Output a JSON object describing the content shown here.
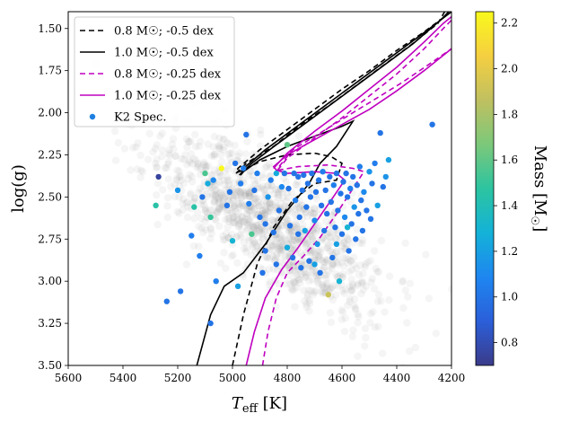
{
  "chart_data": {
    "type": "scatter",
    "xlabel_main": "T",
    "xlabel_sub": "eff",
    "xlabel_unit": " [K]",
    "ylabel": "log(g)",
    "xlim": [
      5600,
      4200
    ],
    "ylim": [
      3.5,
      1.4
    ],
    "xticks": [
      5600,
      5400,
      5200,
      5000,
      4800,
      4600,
      4400,
      4200
    ],
    "yticks": [
      1.5,
      1.75,
      2.0,
      2.25,
      2.5,
      2.75,
      3.0,
      3.25,
      3.5
    ],
    "ytick_labels": [
      "1.50",
      "1.75",
      "2.00",
      "2.25",
      "2.50",
      "2.75",
      "3.00",
      "3.25",
      "3.50"
    ],
    "colorbar": {
      "label": "Mass [M",
      "label_sun": "☉",
      "label_end": "]",
      "range": [
        0.7,
        2.25
      ],
      "ticks": [
        0.8,
        1.0,
        1.2,
        1.4,
        1.6,
        1.8,
        2.0,
        2.2
      ],
      "tick_labels": [
        "0.8",
        "1.0",
        "1.2",
        "1.4",
        "1.6",
        "1.8",
        "2.0",
        "2.2"
      ],
      "colors": [
        "#3b3b8a",
        "#2b5fd9",
        "#1e86f0",
        "#14b2d8",
        "#2cc4a0",
        "#7cc87a",
        "#c0c060",
        "#f5cf40",
        "#f9f91c"
      ]
    },
    "legend": [
      {
        "label": "0.8 M☉; -0.5 dex",
        "color": "#000000",
        "style": "dashed"
      },
      {
        "label": "1.0 M☉; -0.5 dex",
        "color": "#000000",
        "style": "solid"
      },
      {
        "label": "0.8 M☉; -0.25 dex",
        "color": "#bf00bf",
        "style": "dashed"
      },
      {
        "label": "1.0 M☉; -0.25 dex",
        "color": "#bf00bf",
        "style": "solid"
      },
      {
        "label": "K2 Spec.",
        "color": "#1e7fe0",
        "style": "marker"
      }
    ],
    "tracks": [
      {
        "name": "0.8 M☉; -0.5 dex",
        "color": "#000000",
        "dash": "6,4",
        "points": [
          [
            5000,
            3.5
          ],
          [
            4960,
            3.2
          ],
          [
            4910,
            2.9
          ],
          [
            4850,
            2.68
          ],
          [
            4780,
            2.52
          ],
          [
            4700,
            2.42
          ],
          [
            4620,
            2.4
          ],
          [
            4600,
            2.3
          ],
          [
            4640,
            2.26
          ],
          [
            4700,
            2.24
          ],
          [
            4800,
            2.25
          ],
          [
            4900,
            2.29
          ],
          [
            4960,
            2.34
          ],
          [
            4985,
            2.355
          ],
          [
            4980,
            2.33
          ],
          [
            4900,
            2.22
          ],
          [
            4800,
            2.1
          ],
          [
            4700,
            1.98
          ],
          [
            4600,
            1.86
          ],
          [
            4500,
            1.75
          ],
          [
            4400,
            1.63
          ],
          [
            4300,
            1.52
          ],
          [
            4200,
            1.4
          ]
        ]
      },
      {
        "name": "0.8 M☉; -0.5 dex b",
        "color": "#000000",
        "dash": "6,4",
        "points": [
          [
            4987,
            2.36
          ],
          [
            4950,
            2.3
          ],
          [
            4850,
            2.2
          ],
          [
            4750,
            2.07
          ],
          [
            4650,
            1.96
          ],
          [
            4550,
            1.84
          ],
          [
            4450,
            1.72
          ],
          [
            4350,
            1.6
          ],
          [
            4250,
            1.47
          ],
          [
            4225,
            1.4
          ]
        ]
      },
      {
        "name": "1.0 M☉; -0.5 dex",
        "color": "#000000",
        "dash": "",
        "points": [
          [
            5130,
            3.5
          ],
          [
            5080,
            3.2
          ],
          [
            5030,
            3.03
          ],
          [
            4960,
            2.95
          ],
          [
            4880,
            2.78
          ],
          [
            4800,
            2.58
          ],
          [
            4720,
            2.42
          ],
          [
            4680,
            2.3
          ],
          [
            4620,
            2.2
          ],
          [
            4560,
            2.05
          ],
          [
            4600,
            2.08
          ],
          [
            4700,
            2.14
          ],
          [
            4800,
            2.2
          ],
          [
            4900,
            2.28
          ],
          [
            4960,
            2.35
          ],
          [
            4970,
            2.37
          ],
          [
            4960,
            2.33
          ],
          [
            4880,
            2.22
          ],
          [
            4780,
            2.1
          ],
          [
            4680,
            1.98
          ],
          [
            4580,
            1.86
          ],
          [
            4480,
            1.74
          ],
          [
            4380,
            1.62
          ],
          [
            4280,
            1.5
          ],
          [
            4200,
            1.4
          ]
        ]
      },
      {
        "name": "1.0 M☉; -0.5 dex b",
        "color": "#000000",
        "dash": "",
        "points": [
          [
            4975,
            2.37
          ],
          [
            4930,
            2.3
          ],
          [
            4840,
            2.19
          ],
          [
            4740,
            2.07
          ],
          [
            4640,
            1.95
          ],
          [
            4540,
            1.83
          ],
          [
            4440,
            1.71
          ],
          [
            4340,
            1.59
          ],
          [
            4240,
            1.45
          ],
          [
            4210,
            1.4
          ]
        ]
      },
      {
        "name": "0.8 M☉; -0.25 dex",
        "color": "#bf00bf",
        "dash": "6,4",
        "points": [
          [
            4890,
            3.5
          ],
          [
            4870,
            3.3
          ],
          [
            4840,
            3.1
          ],
          [
            4800,
            2.95
          ],
          [
            4740,
            2.85
          ],
          [
            4680,
            2.74
          ],
          [
            4620,
            2.6
          ],
          [
            4560,
            2.45
          ],
          [
            4520,
            2.35
          ],
          [
            4560,
            2.33
          ],
          [
            4650,
            2.31
          ],
          [
            4760,
            2.32
          ],
          [
            4830,
            2.34
          ],
          [
            4835,
            2.33
          ],
          [
            4780,
            2.22
          ],
          [
            4680,
            2.12
          ],
          [
            4580,
            2.02
          ],
          [
            4480,
            1.92
          ],
          [
            4380,
            1.82
          ],
          [
            4280,
            1.71
          ],
          [
            4200,
            1.62
          ]
        ]
      },
      {
        "name": "0.8 M☉; -0.25 dex b",
        "color": "#bf00bf",
        "dash": "6,4",
        "points": [
          [
            4835,
            2.34
          ],
          [
            4800,
            2.27
          ],
          [
            4700,
            2.15
          ],
          [
            4600,
            2.03
          ],
          [
            4500,
            1.9
          ],
          [
            4400,
            1.77
          ],
          [
            4300,
            1.62
          ],
          [
            4230,
            1.5
          ],
          [
            4200,
            1.45
          ]
        ]
      },
      {
        "name": "1.0 M☉; -0.25 dex",
        "color": "#bf00bf",
        "dash": "",
        "points": [
          [
            4950,
            3.5
          ],
          [
            4920,
            3.3
          ],
          [
            4880,
            3.1
          ],
          [
            4820,
            2.93
          ],
          [
            4760,
            2.8
          ],
          [
            4700,
            2.66
          ],
          [
            4640,
            2.52
          ],
          [
            4590,
            2.4
          ],
          [
            4620,
            2.36
          ],
          [
            4700,
            2.35
          ],
          [
            4800,
            2.36
          ],
          [
            4840,
            2.34
          ],
          [
            4850,
            2.32
          ],
          [
            4800,
            2.25
          ],
          [
            4700,
            2.16
          ],
          [
            4600,
            2.07
          ],
          [
            4500,
            1.98
          ],
          [
            4400,
            1.87
          ],
          [
            4300,
            1.75
          ],
          [
            4200,
            1.62
          ]
        ]
      },
      {
        "name": "1.0 M☉; -0.25 dex b",
        "color": "#bf00bf",
        "dash": "",
        "points": [
          [
            4850,
            2.33
          ],
          [
            4800,
            2.24
          ],
          [
            4700,
            2.11
          ],
          [
            4600,
            1.99
          ],
          [
            4500,
            1.86
          ],
          [
            4400,
            1.73
          ],
          [
            4300,
            1.58
          ],
          [
            4230,
            1.47
          ],
          [
            4200,
            1.43
          ]
        ]
      }
    ],
    "k2_points": [
      [
        5270,
        2.38,
        0.75
      ],
      [
        5280,
        2.55,
        1.45
      ],
      [
        5240,
        3.12,
        1.0
      ],
      [
        5200,
        2.46,
        1.15
      ],
      [
        5190,
        3.06,
        1.0
      ],
      [
        5150,
        2.73,
        1.05
      ],
      [
        5140,
        2.56,
        1.45
      ],
      [
        5120,
        2.85,
        1.05
      ],
      [
        5110,
        2.5,
        1.0
      ],
      [
        5100,
        2.36,
        1.55
      ],
      [
        5090,
        2.42,
        1.25
      ],
      [
        5080,
        2.62,
        1.5
      ],
      [
        5070,
        2.4,
        1.1
      ],
      [
        5060,
        3.0,
        1.05
      ],
      [
        5080,
        3.25,
        1.0
      ],
      [
        5040,
        2.33,
        2.25
      ],
      [
        5020,
        2.55,
        1.0
      ],
      [
        5010,
        2.47,
        1.0
      ],
      [
        5000,
        2.76,
        1.3
      ],
      [
        4990,
        2.3,
        1.0
      ],
      [
        4980,
        3.03,
        1.2
      ],
      [
        4970,
        2.42,
        1.05
      ],
      [
        4960,
        2.33,
        1.05
      ],
      [
        4950,
        2.13,
        1.0
      ],
      [
        4940,
        2.54,
        1.05
      ],
      [
        4930,
        2.72,
        1.55
      ],
      [
        4920,
        2.46,
        1.0
      ],
      [
        4910,
        2.36,
        1.05
      ],
      [
        4900,
        2.62,
        1.0
      ],
      [
        4890,
        2.95,
        1.0
      ],
      [
        4880,
        2.82,
        1.0
      ],
      [
        4870,
        2.5,
        1.15
      ],
      [
        4860,
        2.4,
        1.05
      ],
      [
        4850,
        2.71,
        1.0
      ],
      [
        4840,
        2.36,
        1.25
      ],
      [
        4830,
        2.58,
        1.0
      ],
      [
        4820,
        2.44,
        1.1
      ],
      [
        4810,
        2.36,
        1.0
      ],
      [
        4800,
        2.19,
        1.6
      ],
      [
        4795,
        2.45,
        1.0
      ],
      [
        4790,
        2.67,
        1.0
      ],
      [
        4780,
        2.86,
        1.0
      ],
      [
        4775,
        2.36,
        1.0
      ],
      [
        4770,
        2.52,
        1.05
      ],
      [
        4760,
        2.38,
        1.0
      ],
      [
        4755,
        2.62,
        1.0
      ],
      [
        4750,
        2.92,
        1.0
      ],
      [
        4745,
        2.46,
        1.0
      ],
      [
        4740,
        2.37,
        1.0
      ],
      [
        4735,
        2.7,
        1.2
      ],
      [
        4730,
        2.56,
        1.0
      ],
      [
        4725,
        2.42,
        1.0
      ],
      [
        4720,
        2.88,
        1.0
      ],
      [
        4715,
        2.5,
        1.0
      ],
      [
        4710,
        2.36,
        1.0
      ],
      [
        4700,
        2.64,
        1.1
      ],
      [
        4695,
        2.47,
        1.0
      ],
      [
        4690,
        2.78,
        1.15
      ],
      [
        4685,
        2.4,
        1.0
      ],
      [
        4680,
        2.95,
        1.0
      ],
      [
        4675,
        2.55,
        1.0
      ],
      [
        4670,
        2.35,
        1.05
      ],
      [
        4665,
        2.7,
        1.0
      ],
      [
        4660,
        2.46,
        1.0
      ],
      [
        4655,
        2.6,
        1.0
      ],
      [
        4650,
        3.08,
        1.9
      ],
      [
        4645,
        2.38,
        1.0
      ],
      [
        4640,
        2.53,
        1.0
      ],
      [
        4635,
        2.86,
        1.0
      ],
      [
        4630,
        2.43,
        1.05
      ],
      [
        4625,
        2.68,
        1.0
      ],
      [
        4620,
        2.36,
        1.0
      ],
      [
        4615,
        2.58,
        1.0
      ],
      [
        4610,
        3.0,
        1.3
      ],
      [
        4605,
        2.48,
        1.0
      ],
      [
        4600,
        2.72,
        1.0
      ],
      [
        4595,
        2.41,
        1.0
      ],
      [
        4590,
        2.62,
        1.1
      ],
      [
        4585,
        2.36,
        1.0
      ],
      [
        4580,
        2.5,
        1.0
      ],
      [
        4575,
        2.82,
        1.0
      ],
      [
        4570,
        2.45,
        1.05
      ],
      [
        4565,
        2.66,
        1.0
      ],
      [
        4560,
        2.38,
        1.0
      ],
      [
        4555,
        2.56,
        1.15
      ],
      [
        4550,
        2.75,
        1.0
      ],
      [
        4545,
        2.43,
        1.0
      ],
      [
        4540,
        2.6,
        1.0
      ],
      [
        4535,
        2.32,
        1.05
      ],
      [
        4530,
        2.52,
        1.0
      ],
      [
        4525,
        2.7,
        1.0
      ],
      [
        4520,
        2.47,
        1.1
      ],
      [
        4510,
        2.58,
        1.0
      ],
      [
        4500,
        2.35,
        1.15
      ],
      [
        4495,
        2.63,
        1.0
      ],
      [
        4490,
        2.42,
        1.0
      ],
      [
        4480,
        2.3,
        1.05
      ],
      [
        4470,
        2.55,
        1.2
      ],
      [
        4460,
        2.12,
        1.0
      ],
      [
        4450,
        2.44,
        1.0
      ],
      [
        4440,
        2.38,
        1.15
      ],
      [
        4430,
        2.28,
        1.2
      ],
      [
        4270,
        2.07,
        1.0
      ],
      [
        4580,
        2.68,
        1.3
      ],
      [
        4620,
        2.78,
        1.2
      ],
      [
        4700,
        2.9,
        1.2
      ],
      [
        4760,
        2.72,
        1.0
      ],
      [
        4840,
        2.9,
        1.0
      ],
      [
        4880,
        2.66,
        1.0
      ],
      [
        4800,
        2.8,
        1.25
      ]
    ]
  }
}
